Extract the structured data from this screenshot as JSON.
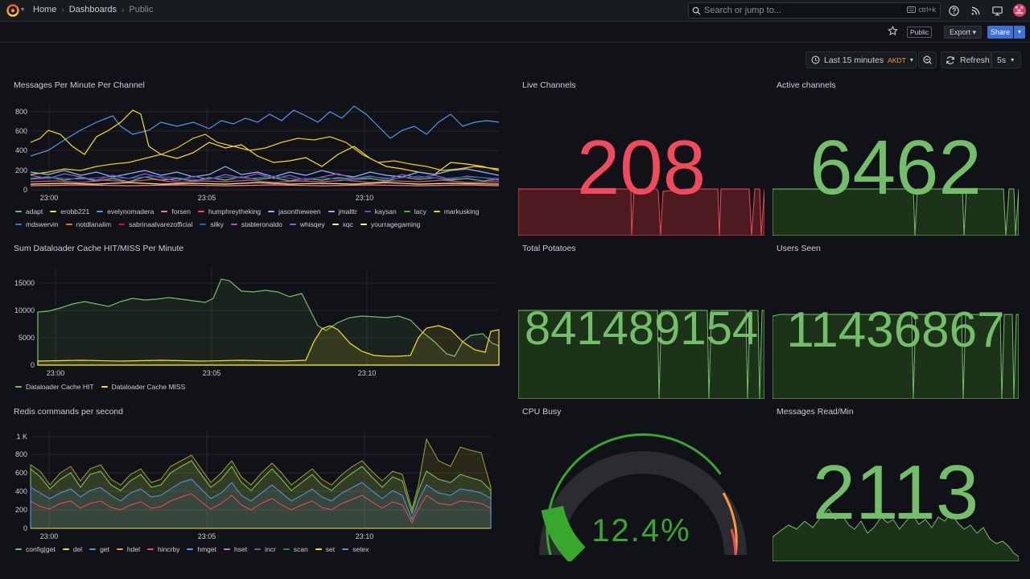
{
  "nav": {
    "crumbs": [
      "Home",
      "Dashboards",
      "Public"
    ],
    "search_placeholder": "Search or jump to...",
    "shortcut": "ctrl+k"
  },
  "toolbar": {
    "public_badge": "Public",
    "export_label": "Export",
    "share_label": "Share",
    "time_range": "Last 15 minutes",
    "timezone": "AKDT",
    "refresh_label": "Refresh",
    "refresh_interval": "5s"
  },
  "colors": {
    "green": "#73bf69",
    "red": "#f2495c",
    "yellow": "#fade2a",
    "blue": "#5794f2",
    "orange": "#ff9830",
    "purple": "#b877d9",
    "accent": "#3d71d9"
  },
  "panels": {
    "messages": {
      "title": "Messages Per Minute Per Channel",
      "yticks": [
        "800",
        "600",
        "400",
        "200",
        "0"
      ],
      "xticks": [
        "23:00",
        "23:05",
        "23:10"
      ],
      "legend": [
        {
          "name": "adapt",
          "color": "#73bf69"
        },
        {
          "name": "erobb221",
          "color": "#fade2a"
        },
        {
          "name": "evelynomadera",
          "color": "#5794f2"
        },
        {
          "name": "forsen",
          "color": "#ff7383"
        },
        {
          "name": "humphreytheking",
          "color": "#f2495c"
        },
        {
          "name": "jasontheween",
          "color": "#8ab8ff"
        },
        {
          "name": "jmalttr",
          "color": "#ca95e5"
        },
        {
          "name": "kaysan",
          "color": "#8f3bb8"
        },
        {
          "name": "lacy",
          "color": "#56a64b"
        },
        {
          "name": "markusking",
          "color": "#f2cc0c"
        },
        {
          "name": "mdswervin",
          "color": "#3274d9"
        },
        {
          "name": "notdlanalim",
          "color": "#e0752d"
        },
        {
          "name": "sabrinaalvarezofficial",
          "color": "#c4162a"
        },
        {
          "name": "silky",
          "color": "#1f60c4"
        },
        {
          "name": "stableronaldo",
          "color": "#a352cc"
        },
        {
          "name": "whisqey",
          "color": "#7b68ee"
        },
        {
          "name": "xqc",
          "color": "#e5f59b"
        },
        {
          "name": "yourragegaming",
          "color": "#fff899"
        }
      ]
    },
    "live_channels": {
      "title": "Live Channels",
      "value": "208",
      "color": "#f2495c"
    },
    "active_channels": {
      "title": "Active channels",
      "value": "6462",
      "color": "#73bf69"
    },
    "dataloader": {
      "title": "Sum Dataloader Cache HIT/MISS Per Minute",
      "yticks": [
        "15000",
        "10000",
        "5000",
        "0"
      ],
      "xticks": [
        "23:00",
        "23:05",
        "23:10"
      ],
      "legend": [
        {
          "name": "Dataloader Cache HIT",
          "color": "#73bf69"
        },
        {
          "name": "Dataloader Cache MISS",
          "color": "#fade2a"
        }
      ]
    },
    "total_potatoes": {
      "title": "Total Potatoes",
      "value": "841489154",
      "color": "#73bf69"
    },
    "users_seen": {
      "title": "Users Seen",
      "value": "11436867",
      "color": "#73bf69"
    },
    "redis": {
      "title": "Redis commands per second",
      "yticks": [
        "1 K",
        "800",
        "600",
        "400",
        "200",
        "0"
      ],
      "xticks": [
        "23:00",
        "23:05",
        "23:10"
      ],
      "legend": [
        {
          "name": "config|get",
          "color": "#73bf69"
        },
        {
          "name": "del",
          "color": "#fade2a"
        },
        {
          "name": "get",
          "color": "#5794f2"
        },
        {
          "name": "hdel",
          "color": "#ff9830"
        },
        {
          "name": "hincrby",
          "color": "#f2495c"
        },
        {
          "name": "hmget",
          "color": "#5794f2"
        },
        {
          "name": "hset",
          "color": "#b877d9"
        },
        {
          "name": "incr",
          "color": "#705da0"
        },
        {
          "name": "scan",
          "color": "#37872d"
        },
        {
          "name": "set",
          "color": "#fade2a"
        },
        {
          "name": "setex",
          "color": "#5794f2"
        }
      ]
    },
    "cpu_busy": {
      "title": "CPU Busy",
      "value": "12.4%",
      "percent": 12.4,
      "color": "#37a82b"
    },
    "messages_read": {
      "title": "Messages Read/Min",
      "value": "2113",
      "color": "#73bf69"
    }
  }
}
